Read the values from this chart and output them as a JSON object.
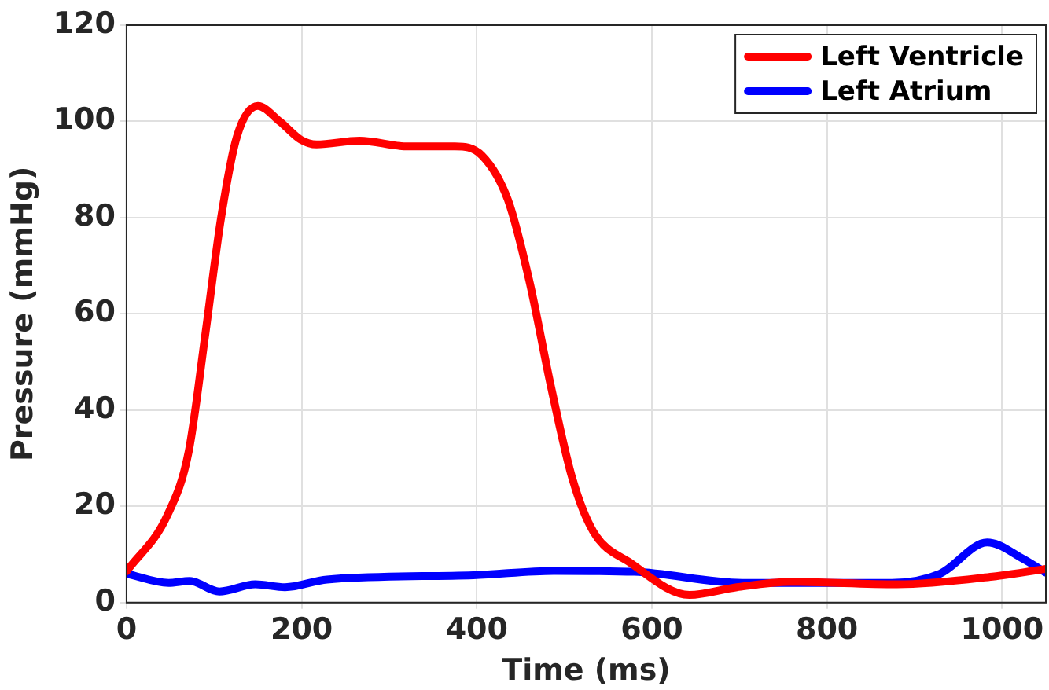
{
  "chart_data": {
    "type": "line",
    "xlabel": "Time (ms)",
    "ylabel": "Pressure (mmHg)",
    "xlim": [
      0,
      1050
    ],
    "xticks": [
      0,
      200,
      400,
      600,
      800,
      1000
    ],
    "ylim": [
      0,
      120
    ],
    "yticks": [
      0,
      20,
      40,
      60,
      80,
      100,
      120
    ],
    "grid": true,
    "legend": "top right",
    "marker": "none",
    "line_style": "solid",
    "series": [
      {
        "name": "Left Ventricle",
        "color": "#ff0000",
        "x": [
          0,
          47,
          71,
          90,
          108,
          126,
          150,
          175,
          199,
          217,
          266,
          321,
          375,
          406,
          436,
          460,
          485,
          509,
          533,
          576,
          643,
          697,
          758,
          880,
          989,
          1050
        ],
        "values": [
          6.5,
          18.3,
          31.4,
          55.8,
          80,
          96.8,
          103.2,
          100,
          96.2,
          95.2,
          96,
          94.8,
          94.8,
          92.9,
          83.5,
          66.9,
          44.7,
          25.9,
          14.8,
          8.2,
          1.6,
          3.2,
          4.3,
          3.8,
          5.4,
          7
        ]
      },
      {
        "name": "Left Atrium",
        "color": "#0000ff",
        "x": [
          0,
          48,
          72,
          106,
          147,
          181,
          229,
          396,
          488,
          580,
          703,
          792,
          874,
          929,
          983,
          1024,
          1050
        ],
        "values": [
          6,
          4.1,
          4.5,
          2.3,
          3.8,
          3.2,
          4.8,
          5.7,
          6.6,
          6.4,
          4.1,
          4.1,
          4.1,
          6,
          12.5,
          9.1,
          6.2
        ]
      }
    ]
  }
}
